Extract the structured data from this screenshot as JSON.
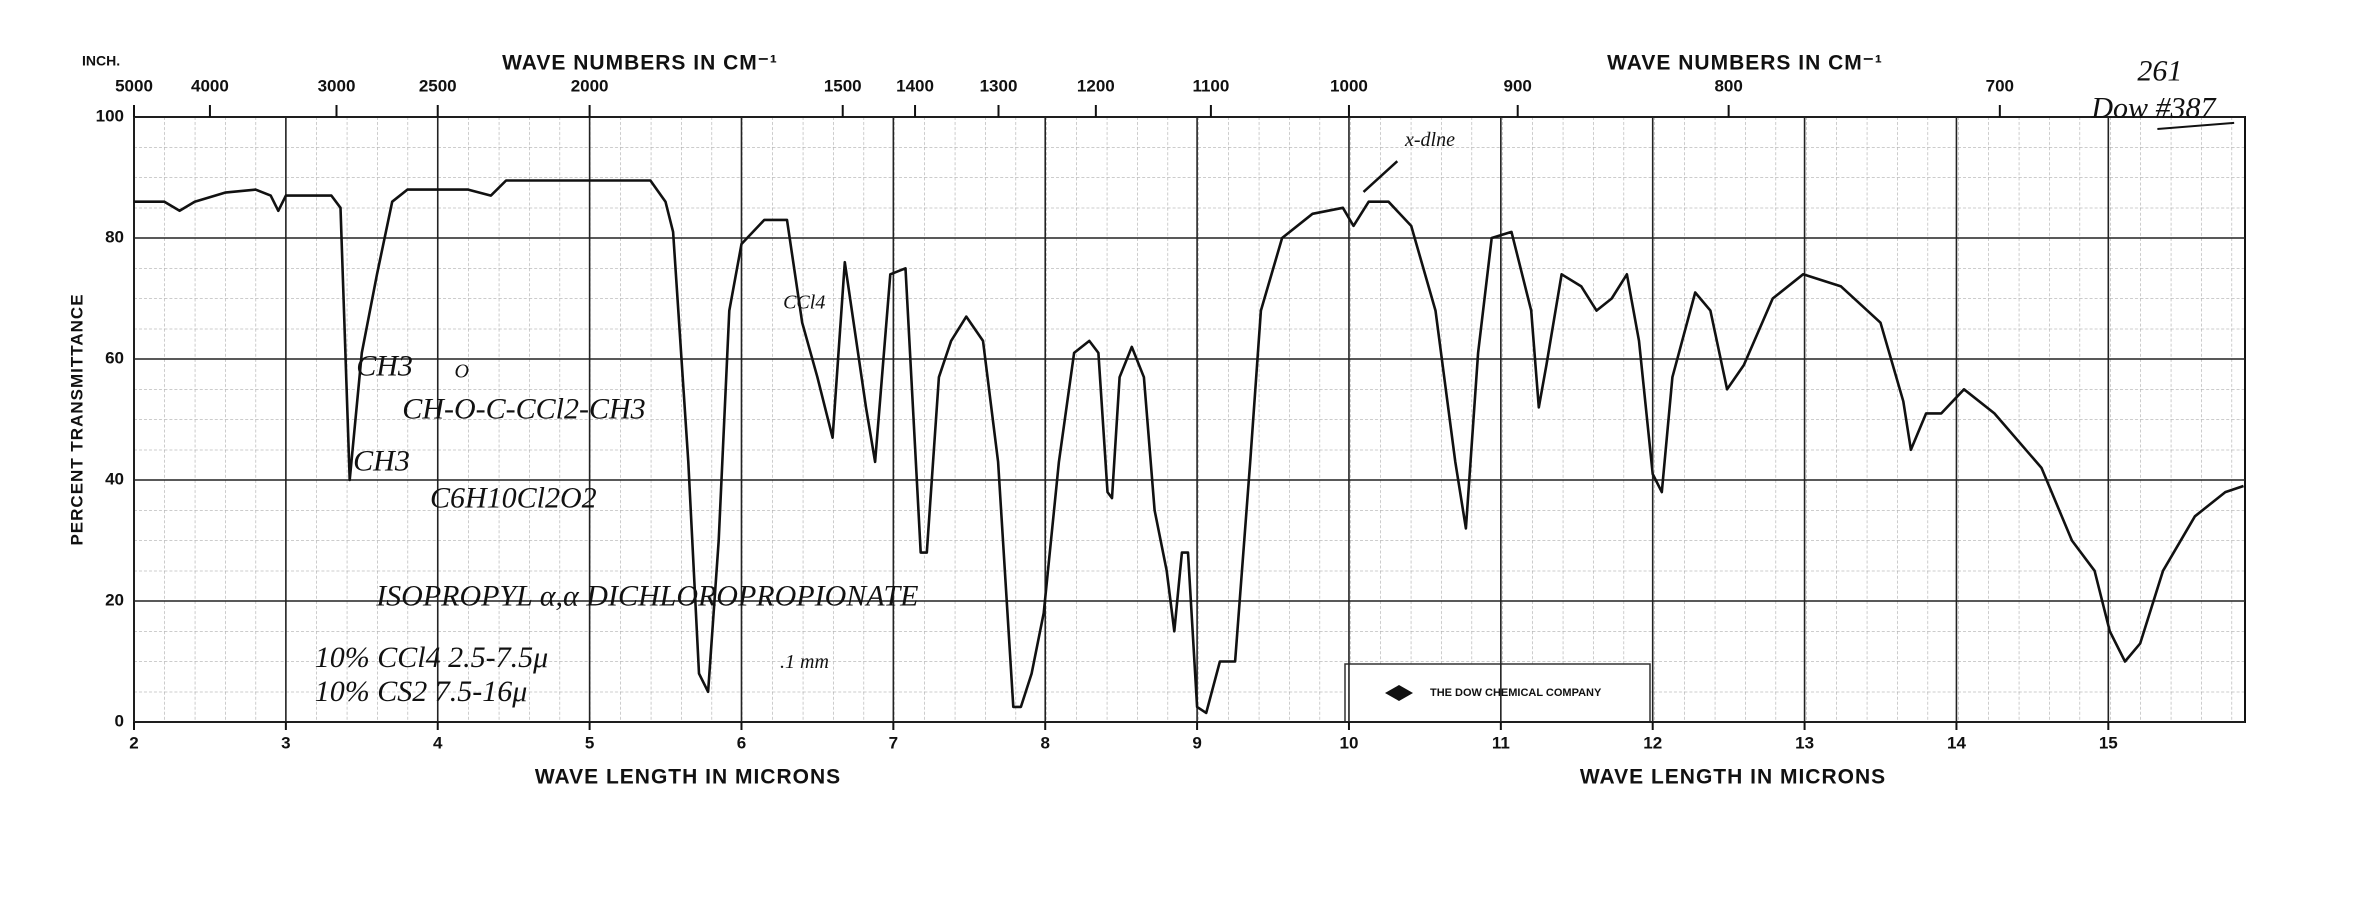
{
  "chart_data": {
    "type": "line",
    "corner_label": "INCH.",
    "xlabel": [
      "WAVE LENGTH IN MICRONS",
      "WAVE LENGTH IN MICRONS"
    ],
    "x2label": [
      "WAVE NUMBERS IN CM⁻¹",
      "WAVE NUMBERS IN CM⁻¹"
    ],
    "ylabel": "PERCENT TRANSMITTANCE",
    "xlim": [
      2,
      15.9
    ],
    "ylim": [
      0,
      100
    ],
    "xticks": [
      2,
      3,
      4,
      5,
      6,
      7,
      8,
      9,
      10,
      11,
      12,
      13,
      14,
      15
    ],
    "x2ticks": [
      5000,
      4000,
      3000,
      2500,
      2000,
      1500,
      1400,
      1300,
      1200,
      1100,
      1000,
      900,
      800,
      700
    ],
    "yticks": [
      0,
      20,
      40,
      60,
      80,
      100
    ],
    "grid": true,
    "series": [
      {
        "color": "#111111",
        "x": [
          2.0,
          2.2,
          2.3,
          2.4,
          2.6,
          2.8,
          2.9,
          2.95,
          3.0,
          3.3,
          3.36,
          3.42,
          3.5,
          3.6,
          3.7,
          3.8,
          4.2,
          4.35,
          4.45,
          5.0,
          5.4,
          5.5,
          5.55,
          5.65,
          5.72,
          5.78,
          5.85,
          5.92,
          6.0,
          6.15,
          6.3,
          6.4,
          6.5,
          6.6,
          6.68,
          6.82,
          6.88,
          6.98,
          7.08,
          7.18,
          7.22,
          7.3,
          7.38,
          7.48,
          7.59,
          7.69,
          7.79,
          7.84,
          7.91,
          7.99,
          8.09,
          8.19,
          8.29,
          8.35,
          8.41,
          8.44,
          8.49,
          8.57,
          8.65,
          8.72,
          8.8,
          8.85,
          8.9,
          8.94,
          9.0,
          9.06,
          9.15,
          9.25,
          9.35,
          9.42,
          9.56,
          9.76,
          9.96,
          10.03,
          10.13,
          10.26,
          10.41,
          10.57,
          10.7,
          10.77,
          10.85,
          10.94,
          11.07,
          11.2,
          11.25,
          11.3,
          11.4,
          11.53,
          11.63,
          11.73,
          11.83,
          11.91,
          12.0,
          12.06,
          12.13,
          12.28,
          12.38,
          12.49,
          12.6,
          12.79,
          12.99,
          13.24,
          13.5,
          13.65,
          13.7,
          13.8,
          13.9,
          14.05,
          14.25,
          14.56,
          14.76,
          14.91,
          15.01,
          15.11,
          15.21,
          15.36,
          15.57,
          15.77,
          15.89
        ],
        "values": [
          86,
          86,
          84.5,
          86,
          87.5,
          88,
          87,
          84.5,
          87,
          87,
          85,
          40,
          61,
          74,
          86,
          88,
          88,
          87,
          89.5,
          89.5,
          89.5,
          86,
          81,
          43,
          8,
          5,
          30,
          68,
          79,
          83,
          83,
          66,
          57,
          47,
          76,
          52,
          43,
          74,
          75,
          28,
          28,
          57,
          63,
          67,
          63,
          43,
          2.5,
          2.5,
          8,
          18,
          43,
          61,
          63,
          61,
          38,
          37,
          57,
          62,
          57,
          35,
          25,
          15,
          28,
          28,
          2.5,
          1.5,
          10,
          10,
          43,
          68,
          80,
          84,
          85,
          82,
          86,
          86,
          82,
          68,
          43,
          32,
          61,
          80,
          81,
          68,
          52,
          59,
          74,
          72,
          68,
          70,
          74,
          63,
          41,
          38,
          57,
          71,
          68,
          55,
          59,
          70,
          74,
          72,
          66,
          53,
          45,
          51,
          51,
          55,
          51,
          42,
          30,
          25,
          15,
          10,
          13,
          25,
          34,
          38,
          39
        ]
      }
    ],
    "annotations": [
      "CH3",
      "O",
      "CH-O-C-CCl2-CH3",
      "CH3",
      "C6H10Cl2O2",
      "ISOPROPYL α,α DICHLOROPROPIONATE",
      "10% CCl4 2.5-7.5μ",
      "10% CS2 7.5-16μ",
      ".1 mm",
      "CCl4",
      "x-dlne",
      "261",
      "Dow #387"
    ],
    "logo_text": "THE DOW CHEMICAL COMPANY"
  }
}
